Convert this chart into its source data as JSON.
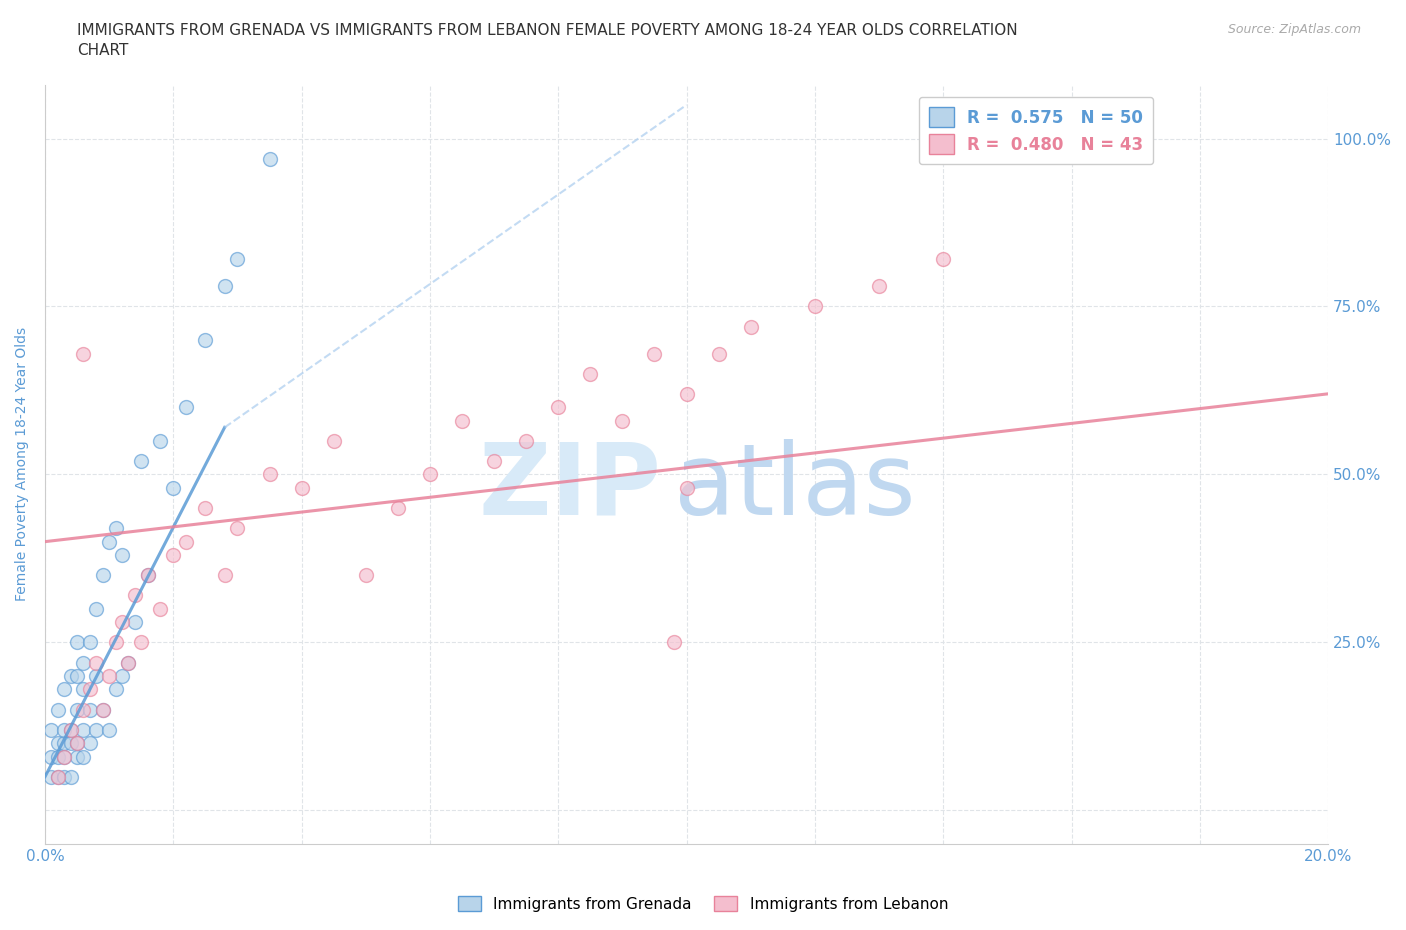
{
  "title": "IMMIGRANTS FROM GRENADA VS IMMIGRANTS FROM LEBANON FEMALE POVERTY AMONG 18-24 YEAR OLDS CORRELATION\nCHART",
  "source_text": "Source: ZipAtlas.com",
  "ylabel": "Female Poverty Among 18-24 Year Olds",
  "xlim": [
    0.0,
    0.2
  ],
  "ylim": [
    -0.05,
    1.08
  ],
  "grenada_color": "#b8d4ea",
  "grenada_edge_color": "#5b9bd5",
  "lebanon_color": "#f4bece",
  "lebanon_edge_color": "#e8829a",
  "grenada_R": "0.575",
  "grenada_N": "50",
  "lebanon_R": "0.480",
  "lebanon_N": "43",
  "watermark_zip": "ZIP",
  "watermark_atlas": "atlas",
  "watermark_color_zip": "#ddeef8",
  "watermark_color_atlas": "#c8e0f0",
  "background_color": "#ffffff",
  "grid_color": "#e0e4e8",
  "axis_label_color": "#5b9bd5",
  "tick_color": "#5b9bd5",
  "legend_grenada_color": "#5b9bd5",
  "legend_lebanon_color": "#e8829a",
  "x_ticks": [
    0.0,
    0.02,
    0.04,
    0.06,
    0.08,
    0.1,
    0.12,
    0.14,
    0.16,
    0.18,
    0.2
  ],
  "y_ticks": [
    0.0,
    0.25,
    0.5,
    0.75,
    1.0
  ],
  "grenada_x": [
    0.001,
    0.001,
    0.001,
    0.002,
    0.002,
    0.002,
    0.002,
    0.003,
    0.003,
    0.003,
    0.003,
    0.003,
    0.004,
    0.004,
    0.004,
    0.004,
    0.005,
    0.005,
    0.005,
    0.005,
    0.005,
    0.006,
    0.006,
    0.006,
    0.006,
    0.007,
    0.007,
    0.007,
    0.008,
    0.008,
    0.008,
    0.009,
    0.009,
    0.01,
    0.01,
    0.011,
    0.011,
    0.012,
    0.012,
    0.013,
    0.014,
    0.015,
    0.016,
    0.018,
    0.02,
    0.022,
    0.025,
    0.028,
    0.03,
    0.035
  ],
  "grenada_y": [
    0.05,
    0.08,
    0.12,
    0.05,
    0.08,
    0.1,
    0.15,
    0.05,
    0.08,
    0.1,
    0.12,
    0.18,
    0.05,
    0.1,
    0.12,
    0.2,
    0.08,
    0.1,
    0.15,
    0.2,
    0.25,
    0.08,
    0.12,
    0.18,
    0.22,
    0.1,
    0.15,
    0.25,
    0.12,
    0.2,
    0.3,
    0.15,
    0.35,
    0.12,
    0.4,
    0.18,
    0.42,
    0.2,
    0.38,
    0.22,
    0.28,
    0.52,
    0.35,
    0.55,
    0.48,
    0.6,
    0.7,
    0.78,
    0.82,
    0.97
  ],
  "lebanon_x": [
    0.002,
    0.003,
    0.004,
    0.005,
    0.006,
    0.006,
    0.007,
    0.008,
    0.009,
    0.01,
    0.011,
    0.012,
    0.013,
    0.014,
    0.015,
    0.016,
    0.018,
    0.02,
    0.022,
    0.025,
    0.028,
    0.03,
    0.035,
    0.04,
    0.045,
    0.05,
    0.055,
    0.06,
    0.065,
    0.07,
    0.075,
    0.08,
    0.085,
    0.09,
    0.095,
    0.1,
    0.105,
    0.11,
    0.12,
    0.13,
    0.14,
    0.1,
    0.098
  ],
  "lebanon_y": [
    0.05,
    0.08,
    0.12,
    0.1,
    0.15,
    0.68,
    0.18,
    0.22,
    0.15,
    0.2,
    0.25,
    0.28,
    0.22,
    0.32,
    0.25,
    0.35,
    0.3,
    0.38,
    0.4,
    0.45,
    0.35,
    0.42,
    0.5,
    0.48,
    0.55,
    0.35,
    0.45,
    0.5,
    0.58,
    0.52,
    0.55,
    0.6,
    0.65,
    0.58,
    0.68,
    0.62,
    0.68,
    0.72,
    0.75,
    0.78,
    0.82,
    0.48,
    0.25
  ],
  "grenada_trend_x0": 0.0,
  "grenada_trend_y0": 0.05,
  "grenada_trend_x1": 0.028,
  "grenada_trend_y1": 0.57,
  "grenada_trend_dash_x0": 0.028,
  "grenada_trend_dash_y0": 0.57,
  "grenada_trend_dash_x1": 0.1,
  "grenada_trend_dash_y1": 1.05,
  "lebanon_trend_x0": 0.0,
  "lebanon_trend_y0": 0.4,
  "lebanon_trend_x1": 0.2,
  "lebanon_trend_y1": 0.62
}
